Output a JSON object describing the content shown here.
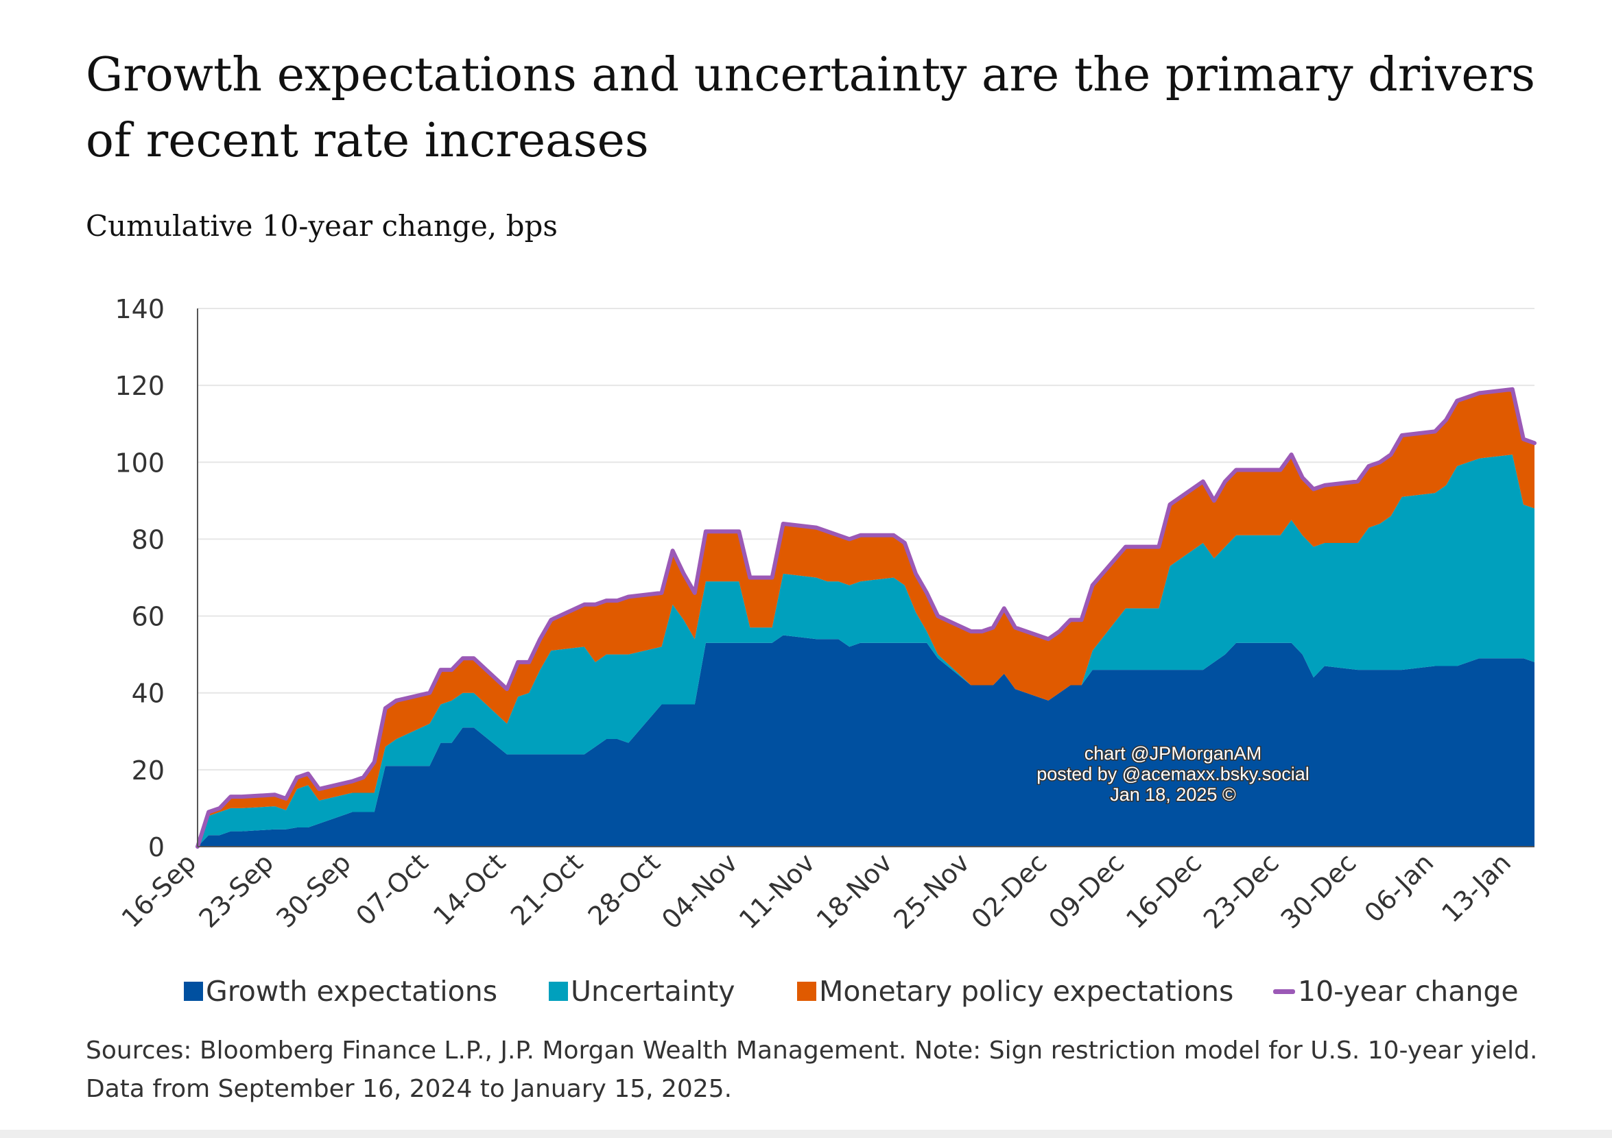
{
  "title": "Growth expectations and uncertainty are the primary drivers of recent rate increases",
  "subtitle": "Cumulative 10-year change, bps",
  "sources_line1": "Sources: Bloomberg Finance L.P., J.P. Morgan Wealth Management. Note: Sign restriction model for U.S. 10-year yield.",
  "sources_line2": "Data from September 16, 2024 to January 15, 2025.",
  "watermark": {
    "line1": "chart @JPMorganAM",
    "line2": "posted by @acemaxx.bsky.social",
    "line3": "Jan 18, 2025 ©"
  },
  "colors": {
    "growth": "#0050a0",
    "uncertainty": "#00a0bd",
    "monetary": "#e05a00",
    "line": "#9b59b6",
    "grid": "#e6e6e6",
    "axis": "#555555",
    "tick_text": "#333333"
  },
  "chart_data": {
    "type": "area",
    "stacked": true,
    "title": "Growth expectations and uncertainty are the primary drivers of recent rate increases",
    "ylabel": "Cumulative 10-year change, bps",
    "ylim": [
      0,
      140
    ],
    "yticks": [
      0,
      20,
      40,
      60,
      80,
      100,
      120,
      140
    ],
    "grid": true,
    "legend_position": "bottom",
    "x_tick_labels": [
      "16-Sep",
      "23-Sep",
      "30-Sep",
      "07-Oct",
      "14-Oct",
      "21-Oct",
      "28-Oct",
      "04-Nov",
      "11-Nov",
      "18-Nov",
      "25-Nov",
      "02-Dec",
      "09-Dec",
      "16-Dec",
      "23-Dec",
      "30-Dec",
      "06-Jan",
      "13-Jan"
    ],
    "x_tick_days": [
      0,
      7,
      14,
      21,
      28,
      35,
      42,
      49,
      56,
      63,
      70,
      77,
      84,
      91,
      98,
      105,
      112,
      119
    ],
    "x_range_days": [
      0,
      121
    ],
    "x_days": [
      0,
      1,
      2,
      3,
      4,
      7,
      8,
      9,
      10,
      11,
      14,
      15,
      16,
      17,
      18,
      21,
      22,
      23,
      24,
      25,
      28,
      29,
      30,
      31,
      32,
      35,
      36,
      37,
      38,
      39,
      42,
      43,
      44,
      45,
      46,
      49,
      50,
      51,
      52,
      53,
      56,
      57,
      58,
      59,
      60,
      63,
      64,
      65,
      66,
      67,
      70,
      71,
      72,
      73,
      74,
      77,
      78,
      79,
      80,
      81,
      84,
      85,
      86,
      87,
      88,
      91,
      92,
      93,
      94,
      95,
      98,
      99,
      100,
      101,
      102,
      105,
      106,
      107,
      108,
      109,
      112,
      113,
      114,
      115,
      116,
      119,
      120,
      121
    ],
    "series": [
      {
        "name": "Growth expectations",
        "kind": "area",
        "values": [
          0,
          3,
          3,
          4,
          4,
          4.5,
          4.5,
          5,
          5,
          6,
          9,
          9,
          9,
          21,
          21,
          21,
          27,
          27,
          31,
          31,
          24,
          24,
          24,
          24,
          24,
          24,
          26,
          28,
          28,
          27,
          37,
          37,
          37,
          37,
          53,
          53,
          53,
          53,
          53,
          55,
          54,
          54,
          54,
          52,
          53,
          53,
          53,
          53,
          53,
          49,
          42,
          42,
          42,
          45,
          41,
          38,
          40,
          42,
          42,
          46,
          46,
          46,
          46,
          46,
          46,
          46,
          48,
          50,
          53,
          53,
          53,
          53,
          50,
          44,
          47,
          46,
          46,
          46,
          46,
          46,
          47,
          47,
          47,
          48,
          49,
          49,
          49,
          48
        ]
      },
      {
        "name": "Uncertainty",
        "kind": "area",
        "values": [
          0,
          5,
          6,
          6,
          6,
          6,
          5,
          10,
          11,
          6,
          5,
          5,
          5,
          5,
          7,
          11,
          10,
          11,
          9,
          9,
          8,
          15,
          16,
          22,
          27,
          28,
          22,
          22,
          22,
          23,
          15,
          26,
          22,
          17,
          16,
          16,
          4,
          4,
          4,
          16,
          16,
          15,
          15,
          16,
          16,
          17,
          15,
          8,
          3,
          1,
          0,
          0,
          0,
          0,
          0,
          0,
          0,
          0,
          0,
          5,
          16,
          16,
          16,
          16,
          27,
          33,
          27,
          28,
          28,
          28,
          28,
          32,
          31,
          34,
          32,
          33,
          37,
          38,
          40,
          45,
          45,
          47,
          52,
          52,
          52,
          53,
          40,
          40
        ]
      },
      {
        "name": "Monetary policy expectations",
        "kind": "area",
        "values": [
          0,
          1,
          1,
          3,
          3,
          3,
          3,
          3,
          3,
          3,
          3,
          4,
          8,
          10,
          10,
          8,
          9,
          8,
          9,
          9,
          9,
          9,
          8,
          8,
          8,
          11,
          15,
          14,
          14,
          15,
          14,
          14,
          12,
          12,
          13,
          13,
          13,
          13,
          13,
          13,
          13,
          13,
          12,
          12,
          12,
          11,
          11,
          10,
          10,
          10,
          14,
          14,
          15,
          17,
          16,
          16,
          16,
          17,
          17,
          17,
          16,
          16,
          16,
          16,
          16,
          16,
          15,
          17,
          17,
          17,
          17,
          17,
          15,
          15,
          15,
          16,
          16,
          16,
          16,
          16,
          16,
          17,
          17,
          17,
          17,
          17,
          17,
          17
        ]
      },
      {
        "name": "10-year change",
        "kind": "line",
        "values": [
          0,
          9,
          10,
          13,
          13,
          13.5,
          12.5,
          18,
          19,
          15,
          17,
          18,
          22,
          36,
          38,
          40,
          46,
          46,
          49,
          49,
          41,
          48,
          48,
          54,
          59,
          63,
          63,
          64,
          64,
          65,
          66,
          77,
          71,
          66,
          82,
          82,
          70,
          70,
          70,
          84,
          83,
          82,
          81,
          80,
          81,
          81,
          79,
          71,
          66,
          60,
          56,
          56,
          57,
          62,
          57,
          54,
          56,
          59,
          59,
          68,
          78,
          78,
          78,
          78,
          89,
          95,
          90,
          95,
          98,
          98,
          98,
          102,
          96,
          93,
          94,
          95,
          99,
          100,
          102,
          107,
          108,
          111,
          116,
          117,
          118,
          119,
          106,
          105
        ]
      }
    ]
  }
}
